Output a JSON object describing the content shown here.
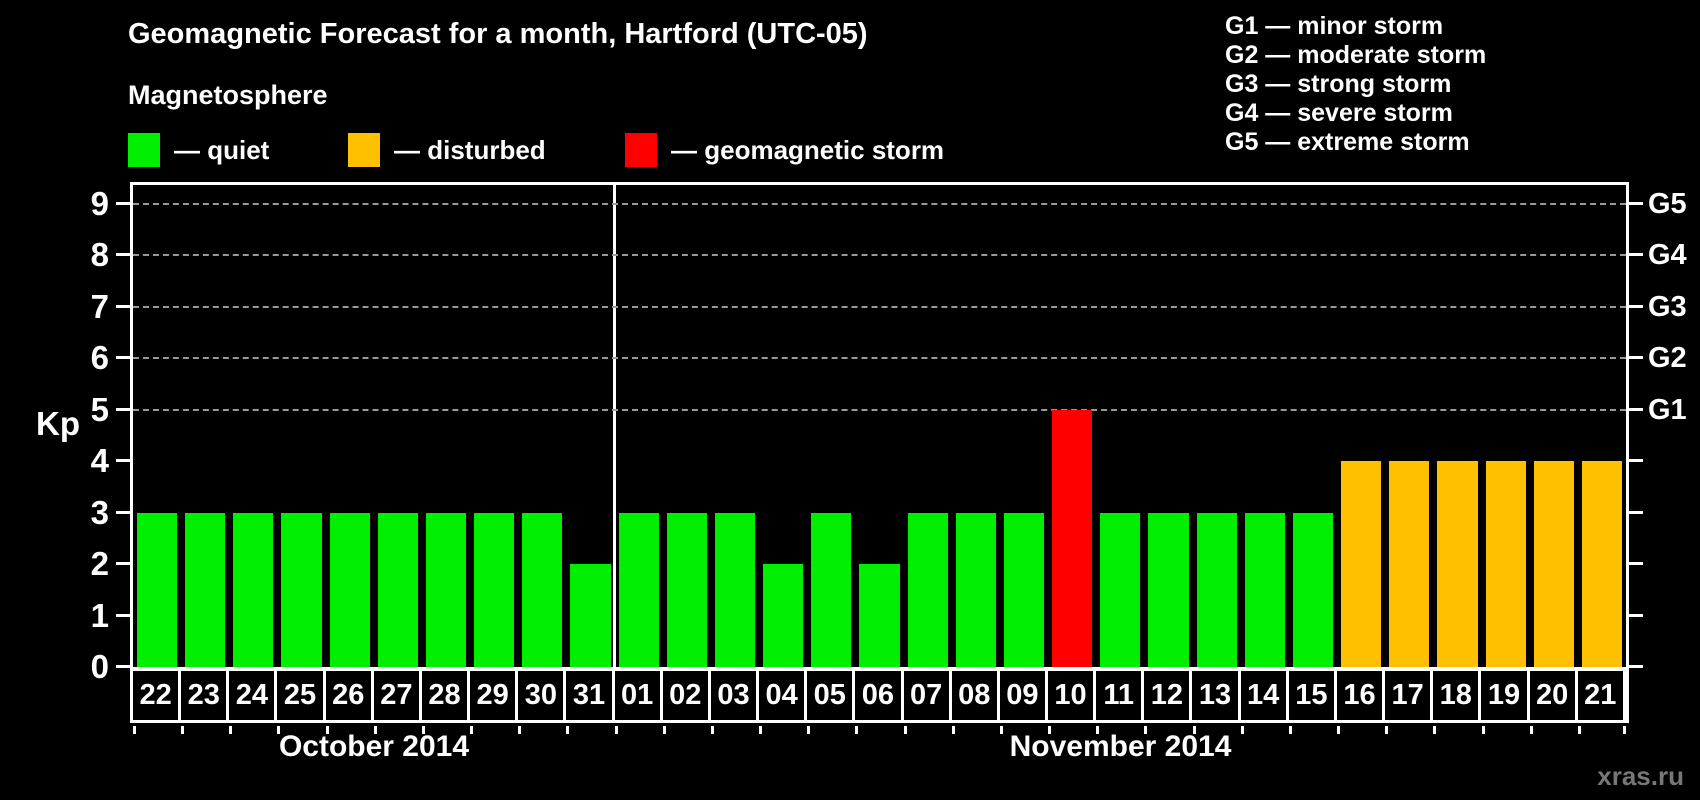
{
  "title": "Geomagnetic Forecast for a month, Hartford (UTC-05)",
  "subtitle": "Magnetosphere",
  "legend": {
    "items": [
      {
        "key": "quiet",
        "label": "— quiet",
        "color": "#00ee00",
        "x": 0
      },
      {
        "key": "disturbed",
        "label": "— disturbed",
        "color": "#ffc000",
        "x": 220
      },
      {
        "key": "storm",
        "label": "— geomagnetic storm",
        "color": "#ff0000",
        "x": 497
      }
    ]
  },
  "g_legend": [
    "G1 — minor storm",
    "G2 — moderate storm",
    "G3 — strong storm",
    "G4 — severe storm",
    "G5 — extreme storm"
  ],
  "axis": {
    "y_label": "Kp",
    "y_ticks": [
      0,
      1,
      2,
      3,
      4,
      5,
      6,
      7,
      8,
      9
    ],
    "y_max_display": 9.37,
    "grid_levels": [
      {
        "kp": 5,
        "g": "G1"
      },
      {
        "kp": 6,
        "g": "G2"
      },
      {
        "kp": 7,
        "g": "G3"
      },
      {
        "kp": 8,
        "g": "G4"
      },
      {
        "kp": 9,
        "g": "G5"
      }
    ]
  },
  "colors": {
    "quiet": "#00ee00",
    "disturbed": "#ffc000",
    "storm": "#ff0000"
  },
  "months": [
    {
      "name": "October 2014",
      "days": [
        {
          "day": "22",
          "kp": 3,
          "status": "quiet"
        },
        {
          "day": "23",
          "kp": 3,
          "status": "quiet"
        },
        {
          "day": "24",
          "kp": 3,
          "status": "quiet"
        },
        {
          "day": "25",
          "kp": 3,
          "status": "quiet"
        },
        {
          "day": "26",
          "kp": 3,
          "status": "quiet"
        },
        {
          "day": "27",
          "kp": 3,
          "status": "quiet"
        },
        {
          "day": "28",
          "kp": 3,
          "status": "quiet"
        },
        {
          "day": "29",
          "kp": 3,
          "status": "quiet"
        },
        {
          "day": "30",
          "kp": 3,
          "status": "quiet"
        },
        {
          "day": "31",
          "kp": 2,
          "status": "quiet"
        }
      ]
    },
    {
      "name": "November 2014",
      "days": [
        {
          "day": "01",
          "kp": 3,
          "status": "quiet"
        },
        {
          "day": "02",
          "kp": 3,
          "status": "quiet"
        },
        {
          "day": "03",
          "kp": 3,
          "status": "quiet"
        },
        {
          "day": "04",
          "kp": 2,
          "status": "quiet"
        },
        {
          "day": "05",
          "kp": 3,
          "status": "quiet"
        },
        {
          "day": "06",
          "kp": 2,
          "status": "quiet"
        },
        {
          "day": "07",
          "kp": 3,
          "status": "quiet"
        },
        {
          "day": "08",
          "kp": 3,
          "status": "quiet"
        },
        {
          "day": "09",
          "kp": 3,
          "status": "quiet"
        },
        {
          "day": "10",
          "kp": 5,
          "status": "storm"
        },
        {
          "day": "11",
          "kp": 3,
          "status": "quiet"
        },
        {
          "day": "12",
          "kp": 3,
          "status": "quiet"
        },
        {
          "day": "13",
          "kp": 3,
          "status": "quiet"
        },
        {
          "day": "14",
          "kp": 3,
          "status": "quiet"
        },
        {
          "day": "15",
          "kp": 3,
          "status": "quiet"
        },
        {
          "day": "16",
          "kp": 4,
          "status": "disturbed"
        },
        {
          "day": "17",
          "kp": 4,
          "status": "disturbed"
        },
        {
          "day": "18",
          "kp": 4,
          "status": "disturbed"
        },
        {
          "day": "19",
          "kp": 4,
          "status": "disturbed"
        },
        {
          "day": "20",
          "kp": 4,
          "status": "disturbed"
        },
        {
          "day": "21",
          "kp": 4,
          "status": "disturbed"
        }
      ]
    }
  ],
  "watermark": "xras.ru",
  "chart_data": {
    "type": "bar",
    "title": "Geomagnetic Forecast for a month, Hartford (UTC-05)",
    "xlabel": "",
    "ylabel": "Kp",
    "ylim": [
      0,
      9
    ],
    "grid": "dashed horizontal at Kp 5-9 (G1-G5)",
    "legend_position": "top-left (quiet/disturbed/storm), top-right (G1-G5 scale)",
    "categories": [
      "Oct 22",
      "Oct 23",
      "Oct 24",
      "Oct 25",
      "Oct 26",
      "Oct 27",
      "Oct 28",
      "Oct 29",
      "Oct 30",
      "Oct 31",
      "Nov 01",
      "Nov 02",
      "Nov 03",
      "Nov 04",
      "Nov 05",
      "Nov 06",
      "Nov 07",
      "Nov 08",
      "Nov 09",
      "Nov 10",
      "Nov 11",
      "Nov 12",
      "Nov 13",
      "Nov 14",
      "Nov 15",
      "Nov 16",
      "Nov 17",
      "Nov 18",
      "Nov 19",
      "Nov 20",
      "Nov 21"
    ],
    "values": [
      3,
      3,
      3,
      3,
      3,
      3,
      3,
      3,
      3,
      2,
      3,
      3,
      3,
      2,
      3,
      2,
      3,
      3,
      3,
      5,
      3,
      3,
      3,
      3,
      3,
      4,
      4,
      4,
      4,
      4,
      4
    ],
    "bar_colors_by_status": {
      "quiet": "#00ee00",
      "disturbed": "#ffc000",
      "storm": "#ff0000"
    },
    "statuses": [
      "quiet",
      "quiet",
      "quiet",
      "quiet",
      "quiet",
      "quiet",
      "quiet",
      "quiet",
      "quiet",
      "quiet",
      "quiet",
      "quiet",
      "quiet",
      "quiet",
      "quiet",
      "quiet",
      "quiet",
      "quiet",
      "quiet",
      "storm",
      "quiet",
      "quiet",
      "quiet",
      "quiet",
      "quiet",
      "disturbed",
      "disturbed",
      "disturbed",
      "disturbed",
      "disturbed",
      "disturbed"
    ],
    "right_axis_labels": [
      {
        "kp": 5,
        "label": "G1"
      },
      {
        "kp": 6,
        "label": "G2"
      },
      {
        "kp": 7,
        "label": "G3"
      },
      {
        "kp": 8,
        "label": "G4"
      },
      {
        "kp": 9,
        "label": "G5"
      }
    ]
  }
}
